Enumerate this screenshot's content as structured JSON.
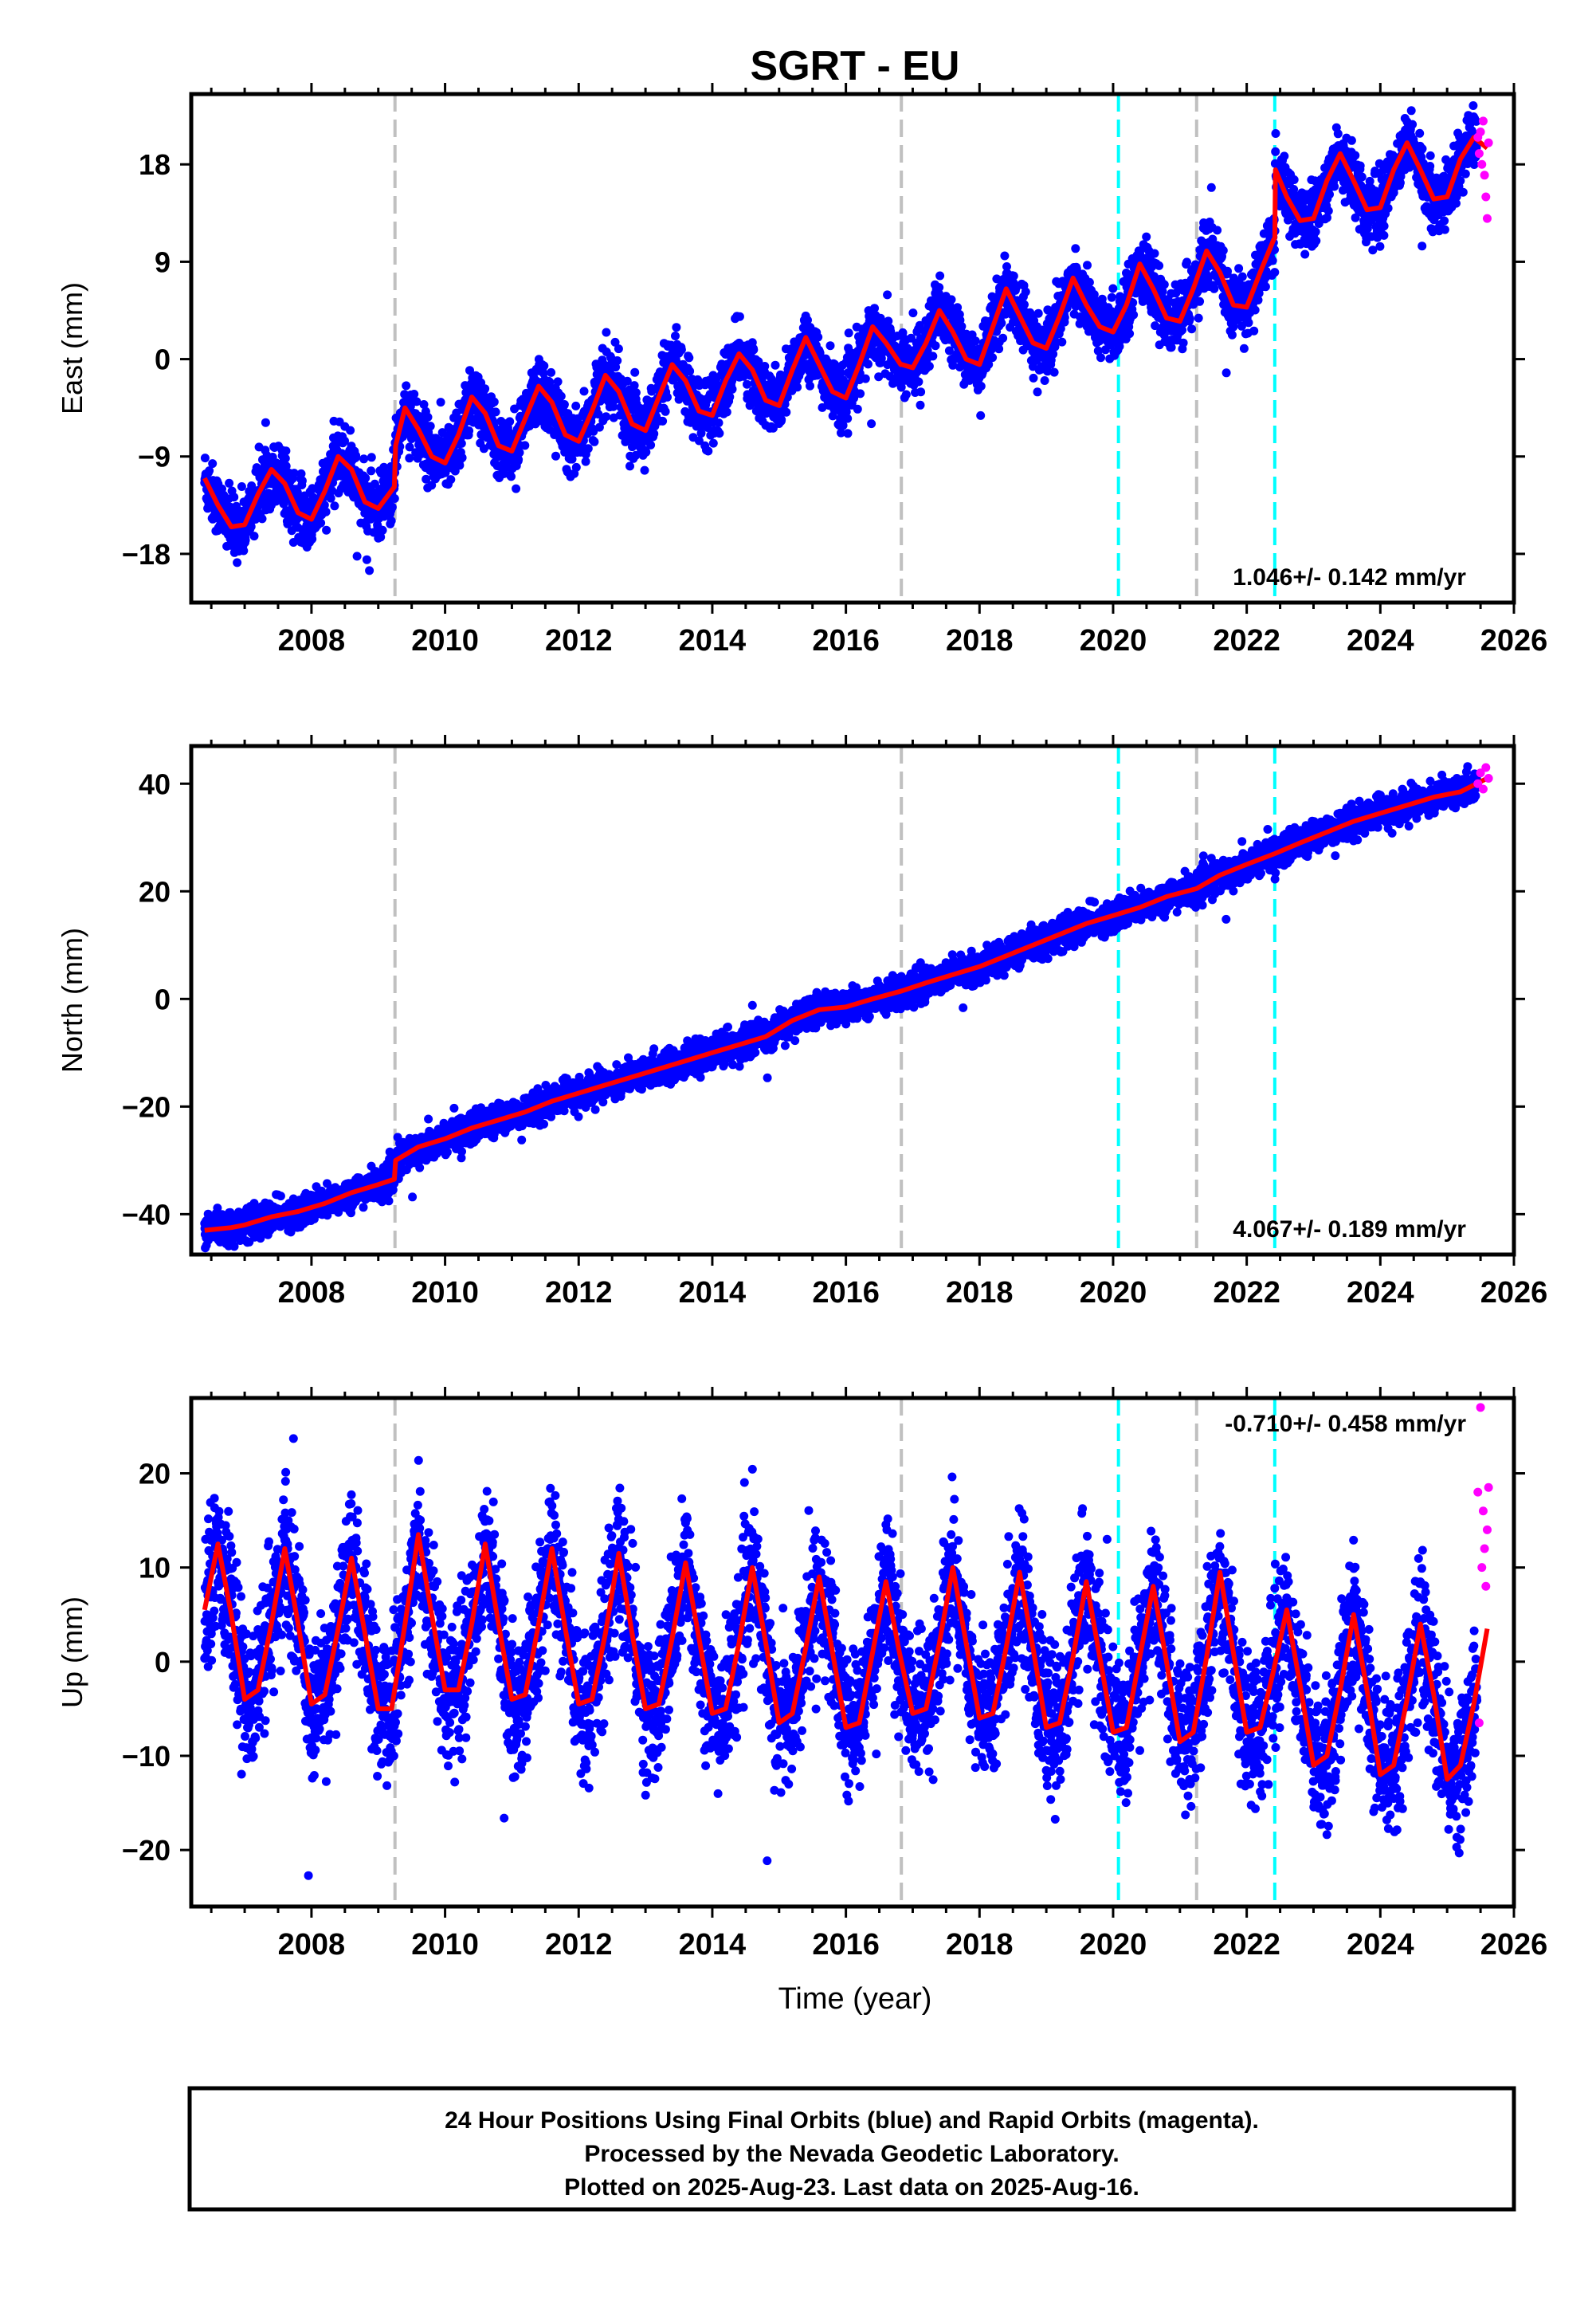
{
  "chart_data": {
    "title": "SGRT - EU",
    "type": "scatter",
    "xlim": [
      2006.2,
      2026.0
    ],
    "x_ticks": [
      2008,
      2010,
      2012,
      2014,
      2016,
      2018,
      2020,
      2022,
      2024,
      2026
    ],
    "xlabel": "Time (year)",
    "colors": {
      "final_orbits": "#0000ff",
      "rapid_orbits": "#ff00ff",
      "model_fit": "#ff0000",
      "equipment_change": "#c0c0c0",
      "earthquake": "#00ffff"
    },
    "equipment_change_lines": [
      2009.25,
      2016.83,
      2021.25
    ],
    "earthquake_lines": [
      2020.08,
      2022.42
    ],
    "data_start": 2006.4,
    "final_end": 2025.45,
    "data_end": 2025.62,
    "panels": [
      {
        "name": "east",
        "ylabel": "East (mm)",
        "ylim": [
          -22.5,
          24.5
        ],
        "y_ticks": [
          -18,
          -9,
          0,
          9,
          18
        ],
        "rate_label": "1.046+/- 0.142 mm/yr",
        "rate_position": "bottom-right",
        "fit": [
          [
            2006.4,
            -11
          ],
          [
            2006.6,
            -13.5
          ],
          [
            2006.8,
            -15.5
          ],
          [
            2007.0,
            -15.3
          ],
          [
            2007.2,
            -12.5
          ],
          [
            2007.4,
            -10.2
          ],
          [
            2007.6,
            -11.5
          ],
          [
            2007.8,
            -14.2
          ],
          [
            2008.0,
            -14.8
          ],
          [
            2008.2,
            -12.2
          ],
          [
            2008.4,
            -9
          ],
          [
            2008.6,
            -10.2
          ],
          [
            2008.8,
            -13.2
          ],
          [
            2009.0,
            -13.8
          ],
          [
            2009.24,
            -11.8
          ],
          [
            2009.26,
            -8
          ],
          [
            2009.4,
            -4.5
          ],
          [
            2009.6,
            -6.5
          ],
          [
            2009.8,
            -9
          ],
          [
            2010.0,
            -9.6
          ],
          [
            2010.2,
            -7
          ],
          [
            2010.4,
            -3.5
          ],
          [
            2010.6,
            -5
          ],
          [
            2010.8,
            -8
          ],
          [
            2011.0,
            -8.5
          ],
          [
            2011.2,
            -5.5
          ],
          [
            2011.4,
            -2.5
          ],
          [
            2011.6,
            -4
          ],
          [
            2011.8,
            -7
          ],
          [
            2012.0,
            -7.6
          ],
          [
            2012.2,
            -4.8
          ],
          [
            2012.4,
            -1.5
          ],
          [
            2012.6,
            -3
          ],
          [
            2012.8,
            -6
          ],
          [
            2013.0,
            -6.6
          ],
          [
            2013.2,
            -3.5
          ],
          [
            2013.4,
            -0.5
          ],
          [
            2013.6,
            -2
          ],
          [
            2013.8,
            -4.8
          ],
          [
            2014.0,
            -5.2
          ],
          [
            2014.2,
            -2
          ],
          [
            2014.4,
            0.5
          ],
          [
            2014.6,
            -1
          ],
          [
            2014.8,
            -3.8
          ],
          [
            2015.0,
            -4.3
          ],
          [
            2015.2,
            -1
          ],
          [
            2015.4,
            2
          ],
          [
            2015.6,
            -0.5
          ],
          [
            2015.8,
            -3
          ],
          [
            2016.0,
            -3.6
          ],
          [
            2016.2,
            -0.5
          ],
          [
            2016.4,
            3
          ],
          [
            2016.6,
            1.5
          ],
          [
            2016.82,
            -0.5
          ],
          [
            2016.84,
            -0.5
          ],
          [
            2017.0,
            -0.8
          ],
          [
            2017.2,
            1.5
          ],
          [
            2017.4,
            4.5
          ],
          [
            2017.6,
            2.5
          ],
          [
            2017.8,
            0
          ],
          [
            2018.0,
            -0.5
          ],
          [
            2018.2,
            3
          ],
          [
            2018.4,
            6.5
          ],
          [
            2018.6,
            4
          ],
          [
            2018.8,
            1.5
          ],
          [
            2019.0,
            1
          ],
          [
            2019.2,
            4
          ],
          [
            2019.4,
            7.5
          ],
          [
            2019.6,
            5
          ],
          [
            2019.8,
            3
          ],
          [
            2020.0,
            2.5
          ],
          [
            2020.2,
            5
          ],
          [
            2020.4,
            8.8
          ],
          [
            2020.6,
            6.5
          ],
          [
            2020.8,
            3.8
          ],
          [
            2021.0,
            3.5
          ],
          [
            2021.2,
            6.5
          ],
          [
            2021.4,
            10
          ],
          [
            2021.6,
            8
          ],
          [
            2021.8,
            5
          ],
          [
            2022.0,
            4.8
          ],
          [
            2022.2,
            8
          ],
          [
            2022.4,
            11
          ],
          [
            2022.42,
            11.2
          ],
          [
            2022.43,
            17.5
          ],
          [
            2022.6,
            15
          ],
          [
            2022.8,
            12.8
          ],
          [
            2023.0,
            13
          ],
          [
            2023.2,
            16.5
          ],
          [
            2023.4,
            19
          ],
          [
            2023.6,
            16.5
          ],
          [
            2023.8,
            13.8
          ],
          [
            2024.0,
            14
          ],
          [
            2024.2,
            17.5
          ],
          [
            2024.4,
            20
          ],
          [
            2024.6,
            17.5
          ],
          [
            2024.8,
            14.8
          ],
          [
            2025.0,
            15
          ],
          [
            2025.2,
            18.5
          ],
          [
            2025.4,
            20.5
          ],
          [
            2025.6,
            19.5
          ]
        ],
        "rapid_points": [
          [
            2025.46,
            20.5
          ],
          [
            2025.48,
            19
          ],
          [
            2025.5,
            21
          ],
          [
            2025.52,
            18
          ],
          [
            2025.54,
            22
          ],
          [
            2025.56,
            17
          ],
          [
            2025.58,
            15
          ],
          [
            2025.6,
            13
          ],
          [
            2025.62,
            20
          ]
        ]
      },
      {
        "name": "north",
        "ylabel": "North (mm)",
        "ylim": [
          -47.5,
          47
        ],
        "y_ticks": [
          -40,
          -20,
          0,
          20,
          40
        ],
        "rate_label": "4.067+/- 0.189 mm/yr",
        "rate_position": "bottom-right",
        "fit": [
          [
            2006.4,
            -43
          ],
          [
            2006.8,
            -42.5
          ],
          [
            2007.0,
            -42
          ],
          [
            2007.4,
            -40.5
          ],
          [
            2007.8,
            -39.5
          ],
          [
            2008.2,
            -38
          ],
          [
            2008.6,
            -36
          ],
          [
            2009.0,
            -34.5
          ],
          [
            2009.24,
            -33.5
          ],
          [
            2009.26,
            -30
          ],
          [
            2009.6,
            -27.5
          ],
          [
            2010.0,
            -26
          ],
          [
            2010.4,
            -24
          ],
          [
            2010.8,
            -22.5
          ],
          [
            2011.2,
            -21
          ],
          [
            2011.6,
            -19
          ],
          [
            2012.0,
            -17.5
          ],
          [
            2012.4,
            -16
          ],
          [
            2012.8,
            -14.5
          ],
          [
            2013.2,
            -13
          ],
          [
            2013.6,
            -11.5
          ],
          [
            2014.0,
            -10
          ],
          [
            2014.4,
            -8.5
          ],
          [
            2014.8,
            -7
          ],
          [
            2015.2,
            -4
          ],
          [
            2015.6,
            -2
          ],
          [
            2016.0,
            -1.5
          ],
          [
            2016.4,
            0
          ],
          [
            2016.84,
            1.5
          ],
          [
            2017.2,
            3
          ],
          [
            2017.6,
            4.5
          ],
          [
            2018.0,
            6
          ],
          [
            2018.4,
            8
          ],
          [
            2018.8,
            10
          ],
          [
            2019.2,
            12
          ],
          [
            2019.6,
            14
          ],
          [
            2020.0,
            15.5
          ],
          [
            2020.4,
            17
          ],
          [
            2020.8,
            19
          ],
          [
            2021.25,
            20.5
          ],
          [
            2021.6,
            23
          ],
          [
            2022.0,
            25
          ],
          [
            2022.42,
            27
          ],
          [
            2022.8,
            29
          ],
          [
            2023.2,
            31
          ],
          [
            2023.6,
            33
          ],
          [
            2024.0,
            34.5
          ],
          [
            2024.4,
            36
          ],
          [
            2024.8,
            37.5
          ],
          [
            2025.2,
            38.5
          ],
          [
            2025.6,
            41
          ]
        ],
        "rapid_points": [
          [
            2025.46,
            40
          ],
          [
            2025.5,
            42
          ],
          [
            2025.54,
            39
          ],
          [
            2025.58,
            43
          ],
          [
            2025.62,
            41
          ]
        ]
      },
      {
        "name": "up",
        "ylabel": "Up (mm)",
        "ylim": [
          -26,
          28
        ],
        "y_ticks": [
          -20,
          -10,
          0,
          10,
          20
        ],
        "rate_label": "-0.710+/- 0.458 mm/yr",
        "rate_position": "top-right",
        "fit": [
          [
            2006.4,
            5.5
          ],
          [
            2006.6,
            12.5
          ],
          [
            2006.8,
            5
          ],
          [
            2007.0,
            -4
          ],
          [
            2007.2,
            -3
          ],
          [
            2007.4,
            4
          ],
          [
            2007.6,
            12
          ],
          [
            2007.8,
            4
          ],
          [
            2008.0,
            -4.5
          ],
          [
            2008.2,
            -3.5
          ],
          [
            2008.4,
            3.5
          ],
          [
            2008.6,
            11
          ],
          [
            2008.8,
            3
          ],
          [
            2009.0,
            -5
          ],
          [
            2009.2,
            -5
          ],
          [
            2009.4,
            4
          ],
          [
            2009.6,
            13.5
          ],
          [
            2009.8,
            5
          ],
          [
            2010.0,
            -3
          ],
          [
            2010.2,
            -3
          ],
          [
            2010.4,
            4
          ],
          [
            2010.6,
            12.5
          ],
          [
            2010.8,
            4
          ],
          [
            2011.0,
            -4
          ],
          [
            2011.2,
            -3.5
          ],
          [
            2011.4,
            4
          ],
          [
            2011.6,
            12
          ],
          [
            2011.8,
            3.5
          ],
          [
            2012.0,
            -4.5
          ],
          [
            2012.2,
            -4
          ],
          [
            2012.4,
            3
          ],
          [
            2012.6,
            11.5
          ],
          [
            2012.8,
            3
          ],
          [
            2013.0,
            -5
          ],
          [
            2013.2,
            -4.5
          ],
          [
            2013.4,
            2.5
          ],
          [
            2013.6,
            10.5
          ],
          [
            2013.8,
            2.5
          ],
          [
            2014.0,
            -5.5
          ],
          [
            2014.2,
            -5
          ],
          [
            2014.4,
            2
          ],
          [
            2014.6,
            10
          ],
          [
            2014.8,
            2
          ],
          [
            2015.0,
            -6.5
          ],
          [
            2015.2,
            -5.5
          ],
          [
            2015.4,
            1.5
          ],
          [
            2015.6,
            9
          ],
          [
            2015.8,
            1
          ],
          [
            2016.0,
            -7
          ],
          [
            2016.2,
            -6.5
          ],
          [
            2016.4,
            1
          ],
          [
            2016.6,
            8.5
          ],
          [
            2016.8,
            1
          ],
          [
            2017.0,
            -5.5
          ],
          [
            2017.2,
            -5
          ],
          [
            2017.4,
            2
          ],
          [
            2017.6,
            10
          ],
          [
            2017.8,
            2
          ],
          [
            2018.0,
            -6
          ],
          [
            2018.2,
            -5.5
          ],
          [
            2018.4,
            1.5
          ],
          [
            2018.6,
            9.5
          ],
          [
            2018.8,
            1.5
          ],
          [
            2019.0,
            -7
          ],
          [
            2019.2,
            -6.5
          ],
          [
            2019.4,
            0.5
          ],
          [
            2019.6,
            8.5
          ],
          [
            2019.8,
            0.5
          ],
          [
            2020.0,
            -7.5
          ],
          [
            2020.2,
            -7
          ],
          [
            2020.4,
            0.5
          ],
          [
            2020.6,
            8
          ],
          [
            2020.8,
            0
          ],
          [
            2021.0,
            -8.5
          ],
          [
            2021.2,
            -7.5
          ],
          [
            2021.4,
            0.5
          ],
          [
            2021.6,
            9.5
          ],
          [
            2021.8,
            1
          ],
          [
            2022.0,
            -7.5
          ],
          [
            2022.2,
            -7
          ],
          [
            2022.4,
            -1
          ],
          [
            2022.6,
            5.5
          ],
          [
            2022.8,
            -2.5
          ],
          [
            2023.0,
            -11
          ],
          [
            2023.2,
            -10
          ],
          [
            2023.4,
            -3
          ],
          [
            2023.6,
            5
          ],
          [
            2023.8,
            -3
          ],
          [
            2024.0,
            -12
          ],
          [
            2024.2,
            -11
          ],
          [
            2024.4,
            -4
          ],
          [
            2024.6,
            4
          ],
          [
            2024.8,
            -3.5
          ],
          [
            2025.0,
            -12.5
          ],
          [
            2025.2,
            -11
          ],
          [
            2025.4,
            -4.5
          ],
          [
            2025.6,
            3.5
          ]
        ],
        "rapid_points": [
          [
            2025.46,
            18
          ],
          [
            2025.48,
            -6.5
          ],
          [
            2025.5,
            27
          ],
          [
            2025.52,
            10
          ],
          [
            2025.54,
            16
          ],
          [
            2025.56,
            12
          ],
          [
            2025.58,
            8
          ],
          [
            2025.6,
            14
          ],
          [
            2025.62,
            18.5
          ]
        ]
      }
    ],
    "footer": {
      "line1": "24 Hour Positions Using Final Orbits (blue) and Rapid Orbits (magenta).",
      "line2": "Processed by the Nevada Geodetic Laboratory.",
      "line3": "Plotted on 2025-Aug-23. Last data on 2025-Aug-16."
    }
  }
}
